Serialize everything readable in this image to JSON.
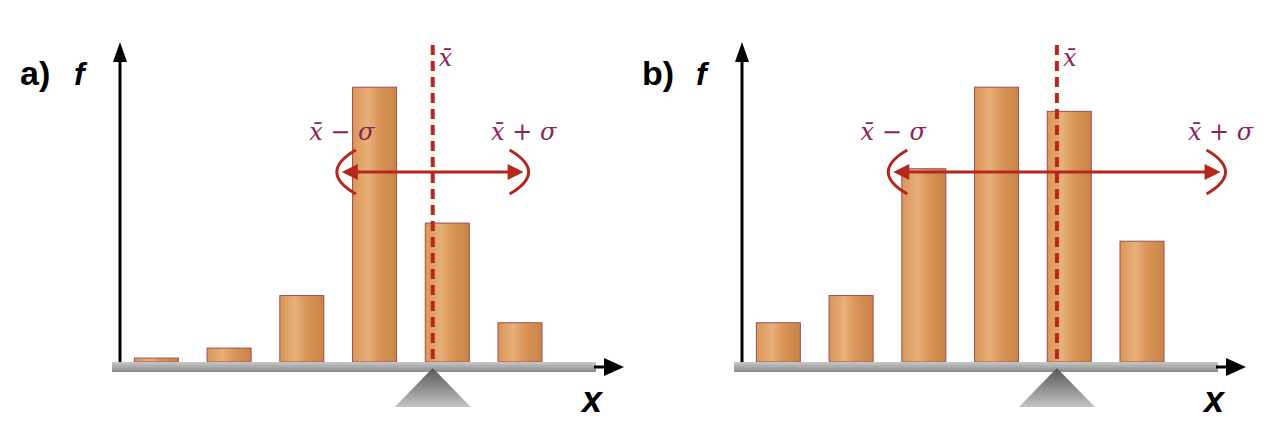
{
  "chart_data": [
    {
      "type": "bar",
      "title": "a)",
      "y_label": "f",
      "x_label": "x",
      "categories": [
        null,
        null,
        null,
        null,
        null,
        null
      ],
      "x": [
        0.5,
        1.5,
        2.5,
        3.5,
        4.5,
        5.5
      ],
      "values": [
        1.3,
        4.6,
        22,
        91,
        46,
        13
      ],
      "xlim": [
        0,
        6.6
      ],
      "ylim": [
        0,
        100
      ],
      "tick_labels": false,
      "color": "#d99658",
      "mean": 4.3,
      "sigma": 1.25,
      "mean_label": "x̄",
      "minus_label": "x̄ − σ",
      "plus_label": "x̄ + σ"
    },
    {
      "type": "bar",
      "title": "b)",
      "y_label": "f",
      "x_label": "x",
      "categories": [
        null,
        null,
        null,
        null,
        null,
        null
      ],
      "x": [
        0.5,
        1.5,
        2.5,
        3.5,
        4.5,
        5.5
      ],
      "values": [
        13,
        22,
        64,
        91,
        83,
        40
      ],
      "xlim": [
        0,
        6.6
      ],
      "ylim": [
        0,
        100
      ],
      "tick_labels": false,
      "color": "#d99658",
      "mean": 4.33,
      "sigma": 2.25,
      "mean_label": "x̄",
      "minus_label": "x̄ − σ",
      "plus_label": "x̄ + σ"
    }
  ]
}
